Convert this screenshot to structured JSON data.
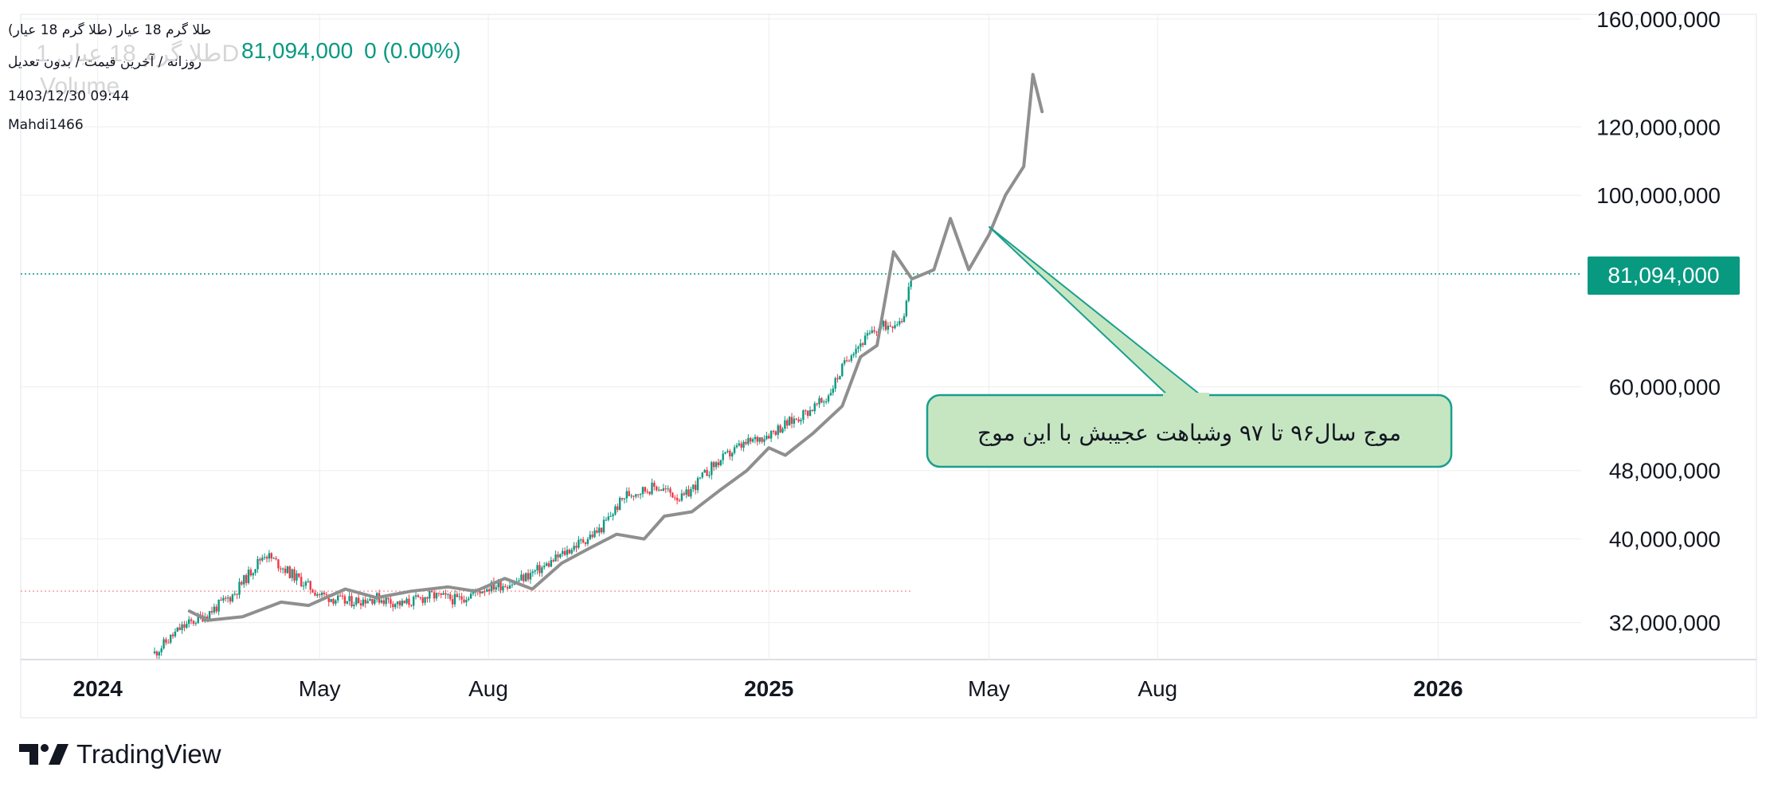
{
  "header": {
    "symbol_title": "طلا گرم 18 عیار (طلا گرم 18 عیار)",
    "interval_info": "روزانه / آخرین قیمت / بدون تعدیل",
    "datetime": "1403/12/30 09:44",
    "author": "Mahdi1466",
    "ghost_symbol": "طلا گرم 18 عیار, 1D",
    "ghost_volume": "Volume",
    "last_price": "81,094,000",
    "change": "0 (0.00%)"
  },
  "brand": {
    "name": "TradingView"
  },
  "colors": {
    "up": "#089981",
    "down": "#f23645",
    "overlay": "#8f8f8f",
    "price_line": "#089981",
    "callout_fill": "#c6e6c2",
    "callout_border": "#1a9e8f",
    "grid": "#eeeeee"
  },
  "chart_data": {
    "type": "line",
    "title": "",
    "xlabel": "",
    "ylabel": "",
    "y_scale": "log",
    "ylim": [
      29000000,
      162000000
    ],
    "xlim": [
      "2023-11-20",
      "2026-03-20"
    ],
    "y_ticks": [
      "160,000,000",
      "120,000,000",
      "100,000,000",
      "60,000,000",
      "48,000,000",
      "40,000,000",
      "32,000,000"
    ],
    "x_ticks": [
      {
        "label": "2024",
        "date": "2024-01-01",
        "bold": true
      },
      {
        "label": "May",
        "date": "2024-05-01",
        "bold": false
      },
      {
        "label": "Aug",
        "date": "2024-08-01",
        "bold": false
      },
      {
        "label": "2025",
        "date": "2025-01-01",
        "bold": true
      },
      {
        "label": "May",
        "date": "2025-05-01",
        "bold": false
      },
      {
        "label": "Aug",
        "date": "2025-08-01",
        "bold": false
      },
      {
        "label": "2026",
        "date": "2026-01-01",
        "bold": true
      }
    ],
    "current_price": {
      "value": 81094000,
      "label": "81,094,000"
    },
    "reference_line": {
      "value": 34800000,
      "x_start": "2023-11-20",
      "x_end": "2025-03-20"
    },
    "series": [
      {
        "style": "candles",
        "x": [
          "2024-02-01",
          "2024-02-15",
          "2024-03-01",
          "2024-03-15",
          "2024-04-01",
          "2024-04-15",
          "2024-05-01",
          "2024-05-15",
          "2024-06-01",
          "2024-06-15",
          "2024-07-01",
          "2024-07-15",
          "2024-08-01",
          "2024-08-15",
          "2024-09-01",
          "2024-09-15",
          "2024-10-01",
          "2024-10-15",
          "2024-11-01",
          "2024-11-15",
          "2024-12-01",
          "2024-12-15",
          "2025-01-01",
          "2025-01-15",
          "2025-02-01",
          "2025-02-15",
          "2025-03-01",
          "2025-03-15",
          "2025-03-20"
        ],
        "y": [
          29500000,
          31500000,
          32800000,
          34500000,
          38500000,
          36500000,
          34500000,
          33800000,
          34200000,
          33600000,
          34400000,
          34000000,
          35200000,
          35600000,
          37200000,
          39000000,
          41000000,
          45000000,
          46000000,
          44500000,
          48500000,
          51000000,
          53000000,
          55000000,
          58000000,
          66000000,
          70000000,
          72000000,
          81094000
        ]
      },
      {
        "style": "line",
        "x": [
          "2024-02-20",
          "2024-03-01",
          "2024-03-20",
          "2024-04-10",
          "2024-04-25",
          "2024-05-15",
          "2024-06-01",
          "2024-06-20",
          "2024-07-10",
          "2024-07-25",
          "2024-08-10",
          "2024-08-25",
          "2024-09-10",
          "2024-09-25",
          "2024-10-10",
          "2024-10-25",
          "2024-11-05",
          "2024-11-20",
          "2024-12-05",
          "2024-12-20",
          "2025-01-01",
          "2025-01-10",
          "2025-01-25",
          "2025-02-10",
          "2025-02-20",
          "2025-03-01",
          "2025-03-10",
          "2025-03-20",
          "2025-04-01",
          "2025-04-10",
          "2025-04-20",
          "2025-05-01",
          "2025-05-10",
          "2025-05-20",
          "2025-05-25",
          "2025-05-30"
        ],
        "y": [
          33000000,
          32200000,
          32500000,
          33800000,
          33500000,
          35000000,
          34200000,
          34800000,
          35200000,
          34800000,
          36000000,
          35000000,
          37500000,
          39000000,
          40500000,
          40000000,
          42500000,
          43000000,
          45500000,
          48000000,
          51000000,
          50000000,
          53000000,
          57000000,
          65000000,
          67000000,
          86000000,
          80000000,
          82000000,
          94000000,
          82000000,
          90000000,
          100000000,
          108000000,
          138000000,
          125000000
        ]
      }
    ],
    "annotation": {
      "text": "موج سال۹۶ تا ۹۷ وشباهت عجیبش با این موج",
      "points_to_date": "2025-05-01",
      "points_to_value": 92000000
    }
  }
}
